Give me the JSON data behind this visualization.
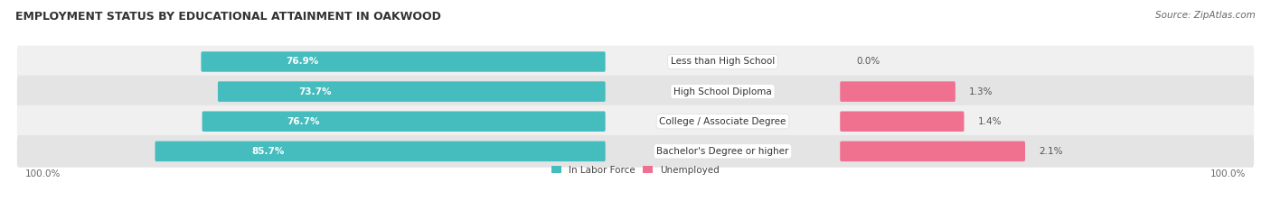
{
  "title": "EMPLOYMENT STATUS BY EDUCATIONAL ATTAINMENT IN OAKWOOD",
  "source": "Source: ZipAtlas.com",
  "categories": [
    "Less than High School",
    "High School Diploma",
    "College / Associate Degree",
    "Bachelor's Degree or higher"
  ],
  "labor_force_pct": [
    76.9,
    73.7,
    76.7,
    85.7
  ],
  "unemployed_pct": [
    0.0,
    1.3,
    1.4,
    2.1
  ],
  "labor_force_color": "#45BCBE",
  "unemployed_color": "#F07090",
  "row_bg_colors": [
    "#F0F0F0",
    "#E4E4E4"
  ],
  "axis_label_left": "100.0%",
  "axis_label_right": "100.0%",
  "legend_labor": "In Labor Force",
  "legend_unemployed": "Unemployed",
  "title_fontsize": 9,
  "source_fontsize": 7.5,
  "label_fontsize": 7.5,
  "bar_label_fontsize": 7.5,
  "cat_label_fontsize": 7.5,
  "background_color": "#FFFFFF"
}
